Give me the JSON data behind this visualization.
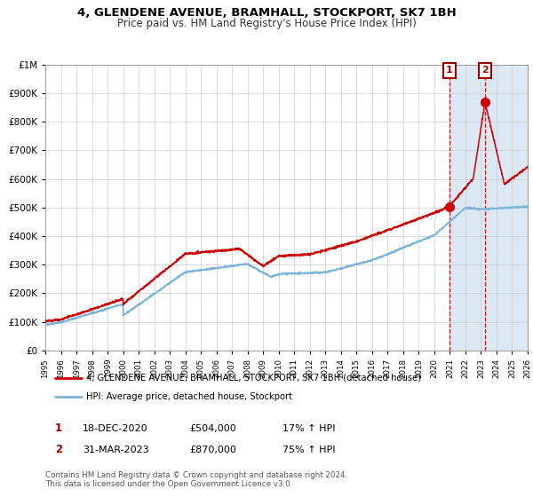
{
  "title1": "4, GLENDENE AVENUE, BRAMHALL, STOCKPORT, SK7 1BH",
  "title2": "Price paid vs. HM Land Registry's House Price Index (HPI)",
  "legend_line1": "4, GLENDENE AVENUE, BRAMHALL, STOCKPORT, SK7 1BH (detached house)",
  "legend_line2": "HPI: Average price, detached house, Stockport",
  "annotation1_date": "18-DEC-2020",
  "annotation1_price": "£504,000",
  "annotation1_hpi": "17% ↑ HPI",
  "annotation2_date": "31-MAR-2023",
  "annotation2_price": "£870,000",
  "annotation2_hpi": "75% ↑ HPI",
  "footer": "Contains HM Land Registry data © Crown copyright and database right 2024.\nThis data is licensed under the Open Government Licence v3.0.",
  "hpi_color": "#7ab4d8",
  "price_color": "#cc0000",
  "marker_color": "#cc0000",
  "bg_color": "#ffffff",
  "grid_color": "#cccccc",
  "highlight_color": "#dce9f5",
  "dashed_color": "#cc0000",
  "box_color": "#990000",
  "ylim": [
    0,
    1000000
  ],
  "xlim_start": 1995,
  "xlim_end": 2026,
  "sale1_year": 2020.96,
  "sale1_price": 504000,
  "sale2_year": 2023.25,
  "sale2_price": 870000
}
